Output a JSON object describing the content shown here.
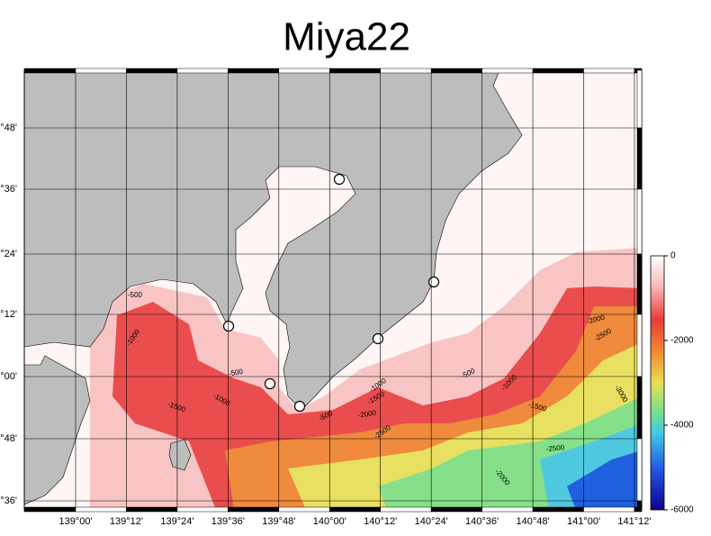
{
  "title": "Miya22",
  "longitude_labels": [
    "139°00'",
    "139°12'",
    "139°24'",
    "139°36'",
    "139°48'",
    "140°00'",
    "140°12'",
    "140°24'",
    "140°36'",
    "140°48'",
    "141°00'",
    "141°12'"
  ],
  "latitude_labels": [
    "°48'",
    "°36'",
    "°24'",
    "°12'",
    "°00'",
    "°48'",
    "°36'"
  ],
  "colorbar": {
    "lim": [
      0,
      -6000
    ],
    "ticks": [
      0,
      -2000,
      -4000,
      -6000
    ]
  },
  "contour_labels": [
    -500,
    -1000,
    -1500,
    -500,
    -1000,
    -500,
    -2000,
    -1500,
    -1000,
    -2500,
    -500,
    -1000,
    -1500,
    -2000,
    -2500,
    -3000,
    -2500,
    -2000
  ]
}
